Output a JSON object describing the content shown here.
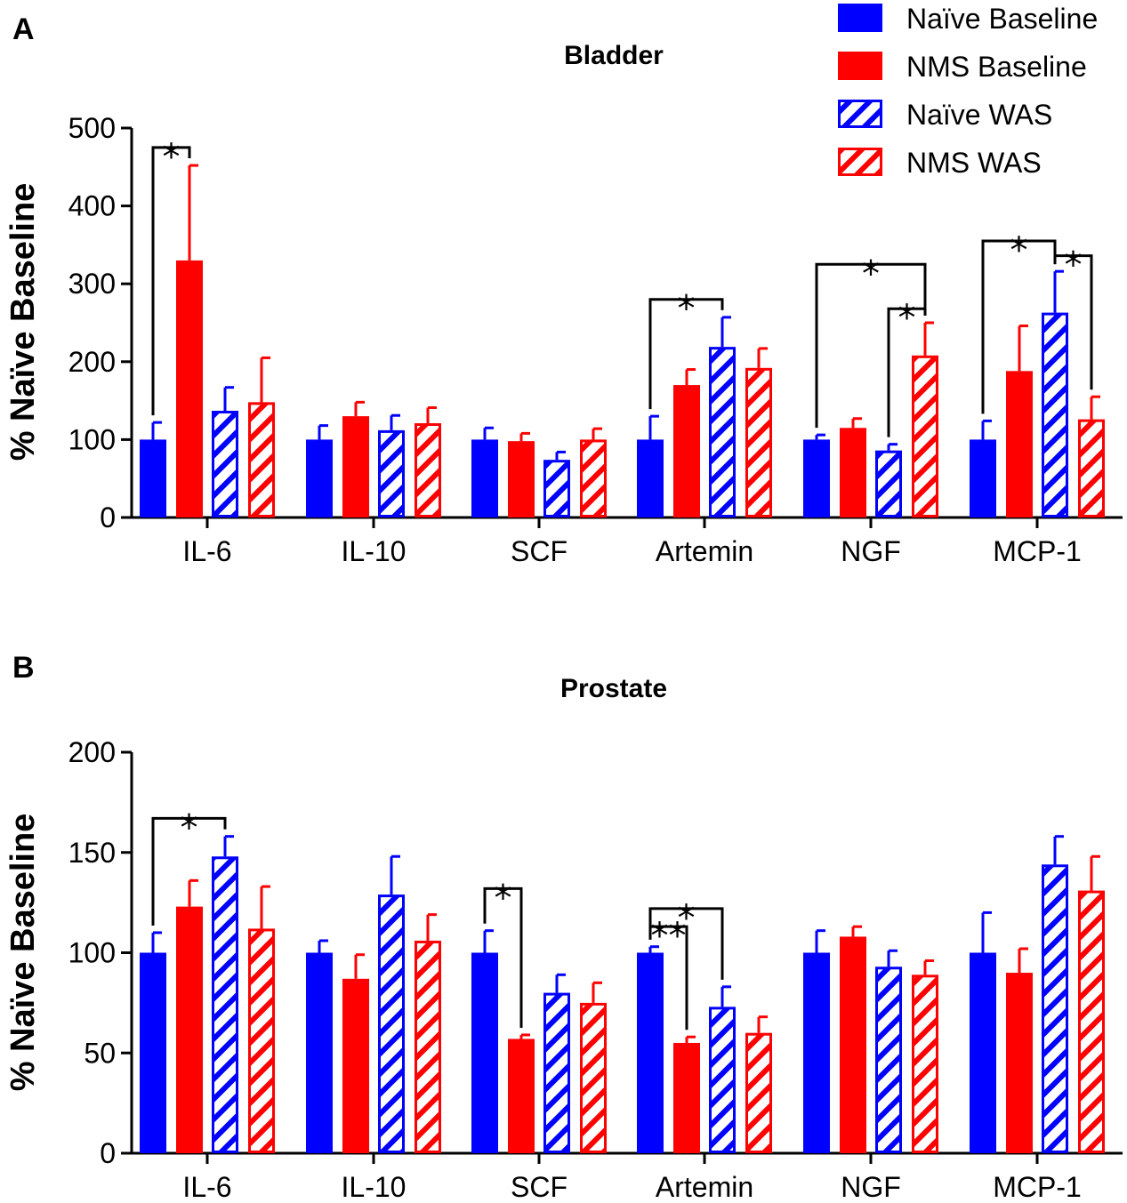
{
  "colors": {
    "naive": "#0000ff",
    "nms": "#ff0000",
    "axis": "#000000"
  },
  "legend": [
    {
      "label": "Naïve Baseline",
      "color": "#0000ff",
      "hatched": false
    },
    {
      "label": "NMS Baseline",
      "color": "#ff0000",
      "hatched": false
    },
    {
      "label": "Naïve WAS",
      "color": "#0000ff",
      "hatched": true
    },
    {
      "label": "NMS WAS",
      "color": "#ff0000",
      "hatched": true
    }
  ],
  "chart_data": [
    {
      "panel": "A",
      "type": "bar",
      "title": "Bladder",
      "ylabel": "% Naïve Baseline",
      "xlabel": "",
      "ylim": [
        0,
        500
      ],
      "yticks": [
        0,
        100,
        200,
        300,
        400,
        500
      ],
      "grid": false,
      "categories": [
        "IL-6",
        "IL-10",
        "SCF",
        "Artemin",
        "NGF",
        "MCP-1"
      ],
      "series": [
        {
          "name": "Naïve Baseline",
          "values": [
            100,
            100,
            100,
            100,
            100,
            100
          ],
          "errors": [
            22,
            18,
            15,
            30,
            6,
            24
          ]
        },
        {
          "name": "NMS Baseline",
          "values": [
            330,
            130,
            98,
            170,
            115,
            188
          ],
          "errors": [
            122,
            18,
            10,
            20,
            12,
            58
          ]
        },
        {
          "name": "Naïve WAS",
          "values": [
            137,
            112,
            74,
            219,
            86,
            263
          ],
          "errors": [
            30,
            19,
            10,
            38,
            8,
            53
          ]
        },
        {
          "name": "NMS WAS",
          "values": [
            148,
            121,
            100,
            192,
            208,
            126
          ],
          "errors": [
            57,
            20,
            14,
            25,
            42,
            29
          ]
        }
      ],
      "significance": [
        {
          "category": 0,
          "from": 0,
          "to": 1,
          "label": "*",
          "y": 475
        },
        {
          "category": 3,
          "from": 0,
          "to": 2,
          "label": "*",
          "y": 280
        },
        {
          "category": 4,
          "from": 0,
          "to": 3,
          "label": "*",
          "y": 325
        },
        {
          "category": 4,
          "from": 2,
          "to": 3,
          "label": "*",
          "y": 268
        },
        {
          "category": 5,
          "from": 0,
          "to": 2,
          "label": "*",
          "y": 355
        },
        {
          "category": 5,
          "from": 2,
          "to": 3,
          "label": "*",
          "y": 336
        }
      ]
    },
    {
      "panel": "B",
      "type": "bar",
      "title": "Prostate",
      "ylabel": "% Naïve Baseline",
      "xlabel": "",
      "ylim": [
        0,
        200
      ],
      "yticks": [
        0,
        50,
        100,
        150,
        200
      ],
      "grid": false,
      "categories": [
        "IL-6",
        "IL-10",
        "SCF",
        "Artemin",
        "NGF",
        "MCP-1"
      ],
      "series": [
        {
          "name": "Naïve Baseline",
          "values": [
            100,
            100,
            100,
            100,
            100,
            100
          ],
          "errors": [
            10,
            6,
            11,
            3,
            11,
            20
          ]
        },
        {
          "name": "NMS Baseline",
          "values": [
            123,
            87,
            57,
            55,
            108,
            90
          ],
          "errors": [
            13,
            12,
            2,
            3,
            5,
            12
          ]
        },
        {
          "name": "Naïve WAS",
          "values": [
            148,
            129,
            80,
            73,
            93,
            144
          ],
          "errors": [
            10,
            19,
            9,
            10,
            8,
            14
          ]
        },
        {
          "name": "NMS WAS",
          "values": [
            112,
            106,
            75,
            60,
            89,
            131
          ],
          "errors": [
            21,
            13,
            10,
            8,
            7,
            17
          ]
        }
      ],
      "significance": [
        {
          "category": 0,
          "from": 0,
          "to": 2,
          "label": "*",
          "y": 167
        },
        {
          "category": 2,
          "from": 0,
          "to": 1,
          "label": "*",
          "y": 132
        },
        {
          "category": 3,
          "from": 0,
          "to": 2,
          "label": "*",
          "y": 122
        },
        {
          "category": 3,
          "from": 0,
          "to": 1,
          "label": "**",
          "y": 113
        }
      ]
    }
  ]
}
